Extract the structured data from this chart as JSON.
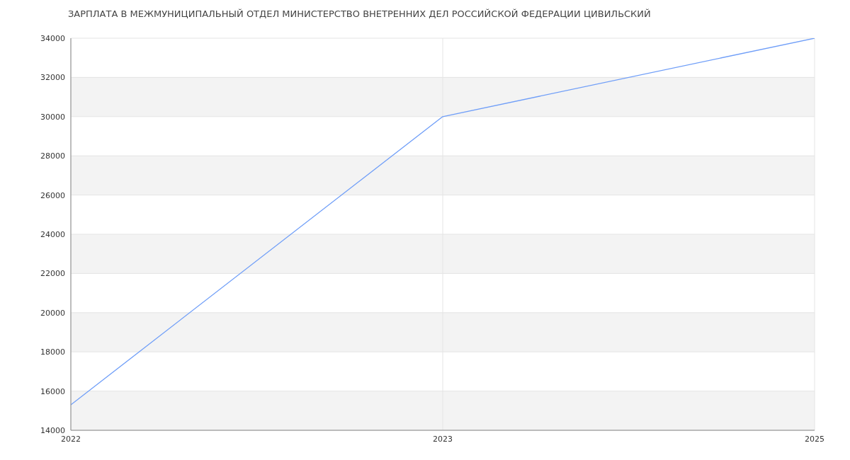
{
  "chart_data": {
    "type": "line",
    "title": "ЗАРПЛАТА В МЕЖМУНИЦИПАЛЬНЫЙ ОТДЕЛ МИНИСТЕРСТВО ВНЕТРЕННИХ ДЕЛ РОССИЙСКОЙ ФЕДЕРАЦИИ ЦИВИЛЬСКИЙ",
    "categories": [
      "2022",
      "2023",
      "2025"
    ],
    "series": [
      {
        "color": "#6f9ef8",
        "values": [
          15300,
          30000,
          34000
        ]
      }
    ],
    "ylim": [
      14000,
      34000
    ],
    "yticks": [
      14000,
      16000,
      18000,
      20000,
      22000,
      24000,
      26000,
      28000,
      30000,
      32000,
      34000
    ],
    "grid": true,
    "legend": false,
    "marker": "none",
    "line_style": "solid"
  }
}
